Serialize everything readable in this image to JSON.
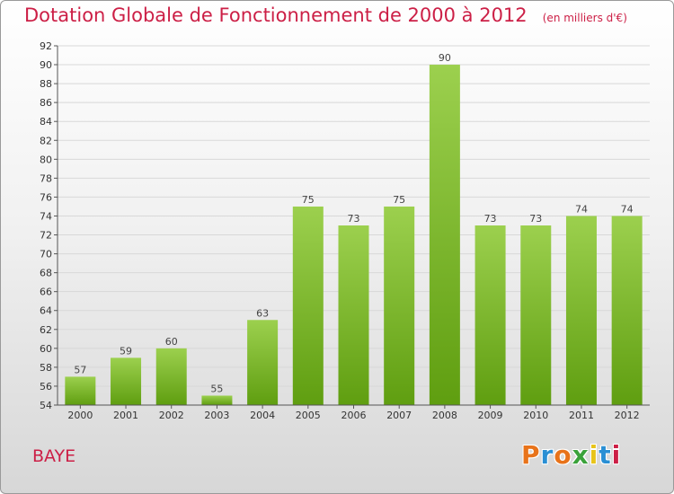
{
  "header": {
    "title": "Dotation Globale de Fonctionnement de 2000 à 2012",
    "subtitle": "(en milliers d'€)"
  },
  "footer": {
    "commune": "BAYE",
    "logo_text": "Proxiti",
    "logo_colors": [
      "#e8731a",
      "#2a8fd4",
      "#e8731a",
      "#3aa23a",
      "#e8c41a",
      "#2a8fd4",
      "#cc1f46"
    ]
  },
  "colors": {
    "title": "#cc1f46",
    "bar_top": "#9cd04e",
    "bar_bottom": "#5f9e10",
    "grid": "#d8d8d8",
    "axis": "#555555"
  },
  "chart_data": {
    "type": "bar",
    "title": "Dotation Globale de Fonctionnement de 2000 à 2012",
    "subtitle": "(en milliers d'€)",
    "categories": [
      "2000",
      "2001",
      "2002",
      "2003",
      "2004",
      "2005",
      "2006",
      "2007",
      "2008",
      "2009",
      "2010",
      "2011",
      "2012"
    ],
    "values": [
      57,
      59,
      60,
      55,
      63,
      75,
      73,
      75,
      90,
      73,
      73,
      74,
      74
    ],
    "ylim": [
      54,
      92
    ],
    "yticks": [
      54,
      56,
      58,
      60,
      62,
      64,
      66,
      68,
      70,
      72,
      74,
      76,
      78,
      80,
      82,
      84,
      86,
      88,
      90,
      92
    ],
    "grid": true,
    "data_labels": true,
    "legend": "none"
  }
}
